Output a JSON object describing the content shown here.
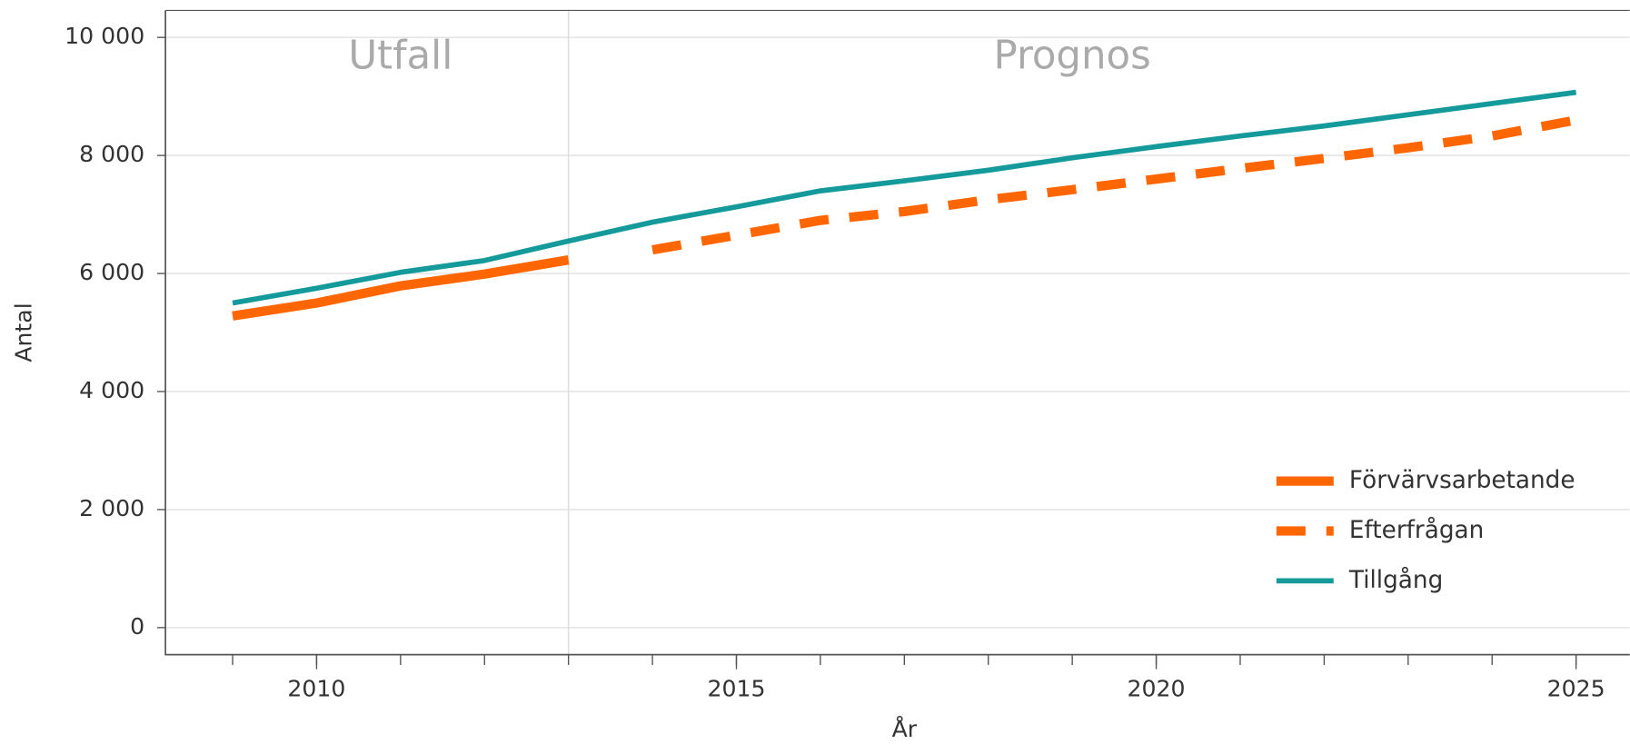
{
  "chart_data": {
    "type": "line",
    "x_label": "År",
    "y_label": "Antal",
    "x": [
      2009,
      2010,
      2011,
      2012,
      2013,
      2014,
      2015,
      2016,
      2017,
      2018,
      2019,
      2020,
      2021,
      2022,
      2023,
      2024,
      2025
    ],
    "series": [
      {
        "name": "Förvärvsarbetande",
        "color": "#ff6600",
        "dash": false,
        "values": [
          5280,
          5500,
          5790,
          5990,
          6230,
          null,
          null,
          null,
          null,
          null,
          null,
          null,
          null,
          null,
          null,
          null,
          null
        ]
      },
      {
        "name": "Efterfrågan",
        "color": "#ff6600",
        "dash": true,
        "values": [
          null,
          null,
          null,
          null,
          null,
          6400,
          6650,
          6900,
          7050,
          7250,
          7420,
          7600,
          7780,
          7950,
          8130,
          8330,
          8600
        ]
      },
      {
        "name": "Tillgång",
        "color": "#149a9a",
        "dash": false,
        "values": [
          5500,
          5750,
          6020,
          6220,
          6550,
          6870,
          7130,
          7400,
          7570,
          7750,
          7960,
          8150,
          8330,
          8500,
          8690,
          8880,
          9070
        ]
      }
    ],
    "annotations": [
      {
        "text": "Utfall",
        "x": 2011,
        "y": 9650
      },
      {
        "text": "Prognos",
        "x": 2019,
        "y": 9650
      }
    ],
    "divider_x": 2013,
    "xlim": [
      2008.2,
      2025.64
    ],
    "ylim": [
      -458,
      10458
    ],
    "xticks": [
      2010,
      2015,
      2020,
      2025
    ],
    "yticks": [
      0,
      {
        "value": 2000,
        "label": "2 000"
      },
      {
        "value": 4000,
        "label": "4 000"
      },
      {
        "value": 6000,
        "label": "6 000"
      },
      {
        "value": 8000,
        "label": "8 000"
      },
      {
        "value": 10000,
        "label": "10 000"
      }
    ],
    "grid": true,
    "legend": "lower right"
  }
}
